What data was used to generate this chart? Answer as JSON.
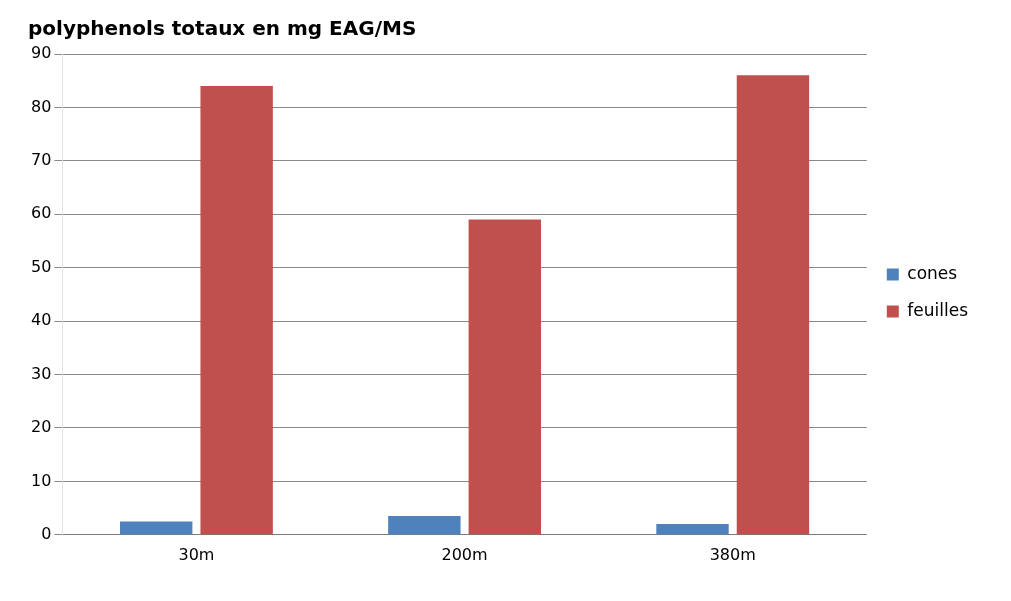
{
  "chart_data": {
    "type": "bar",
    "title": "polyphenols totaux en mg EAG/MS",
    "categories": [
      "30m",
      "200m",
      "380m"
    ],
    "series": [
      {
        "name": "cones",
        "color": "#4f81bd",
        "values": [
          2.5,
          3.5,
          2
        ]
      },
      {
        "name": "feuilles",
        "color": "#c0504d",
        "values": [
          84,
          59,
          86
        ]
      }
    ],
    "ylim": [
      0,
      90
    ],
    "yticks": [
      0,
      10,
      20,
      30,
      40,
      50,
      60,
      70,
      80,
      90
    ],
    "grid": "y",
    "legend": "right"
  }
}
